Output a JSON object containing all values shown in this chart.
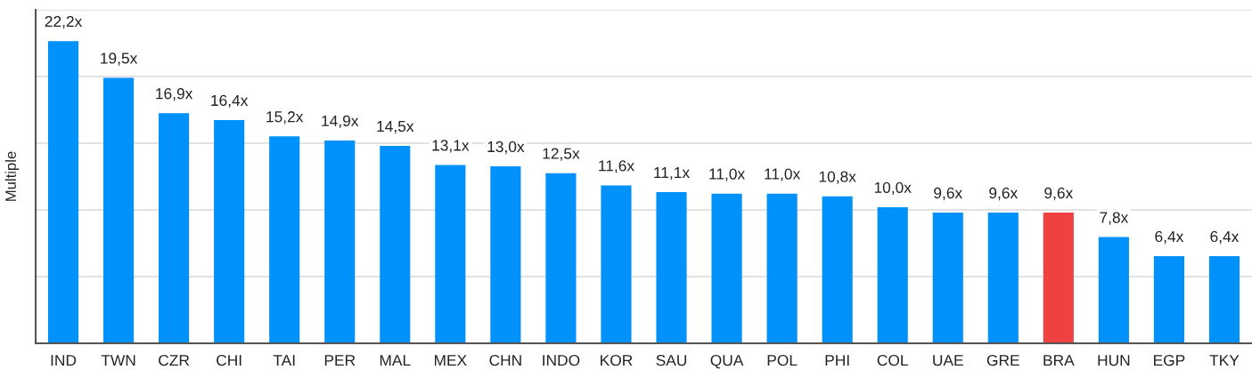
{
  "chart_data": {
    "type": "bar",
    "ylabel": "Multiple",
    "categories": [
      "IND",
      "TWN",
      "CZR",
      "CHI",
      "TAI",
      "PER",
      "MAL",
      "MEX",
      "CHN",
      "INDO",
      "KOR",
      "SAU",
      "QUA",
      "POL",
      "PHI",
      "COL",
      "UAE",
      "GRE",
      "BRA",
      "HUN",
      "EGP",
      "TKY"
    ],
    "values": [
      22.2,
      19.5,
      16.9,
      16.4,
      15.2,
      14.9,
      14.5,
      13.1,
      13.0,
      12.5,
      11.6,
      11.1,
      11.0,
      11.0,
      10.8,
      10.0,
      9.6,
      9.6,
      9.6,
      7.8,
      6.4,
      6.4
    ],
    "colors": [
      "#0091fa",
      "#0091fa",
      "#0091fa",
      "#0091fa",
      "#0091fa",
      "#0091fa",
      "#0091fa",
      "#0091fa",
      "#0091fa",
      "#0091fa",
      "#0091fa",
      "#0091fa",
      "#0091fa",
      "#0091fa",
      "#0091fa",
      "#0091fa",
      "#0091fa",
      "#0091fa",
      "#ef4142",
      "#0091fa",
      "#0091fa",
      "#0091fa"
    ],
    "value_labels": [
      "22,2x",
      "19,5x",
      "16,9x",
      "16,4x",
      "15,2x",
      "14,9x",
      "14,5x",
      "13,1x",
      "13,0x",
      "12,5x",
      "11,6x",
      "11,1x",
      "11,0x",
      "11,0x",
      "10,8x",
      "10,0x",
      "9,6x",
      "9,6x",
      "9,6x",
      "7,8x",
      "6,4x",
      "6,4x"
    ],
    "ylim": [
      0,
      24.5
    ],
    "yticks": [
      {
        "value": 0,
        "label": null
      },
      {
        "value": 4.9,
        "label": null
      },
      {
        "value": 9.8,
        "label": null
      },
      {
        "value": 14.7,
        "label": null
      },
      {
        "value": 19.6,
        "label": null
      },
      {
        "value": 24.5,
        "label": null
      }
    ],
    "grid": "y",
    "tick_labels": "x"
  }
}
